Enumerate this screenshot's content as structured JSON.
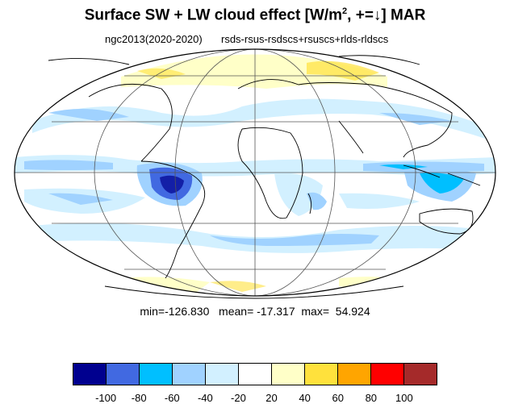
{
  "title": {
    "main": "Surface SW + LW cloud effect [W/m",
    "sup": "2",
    "rest": ", +=↓]  MAR"
  },
  "subtitle": {
    "left": "ngc2013(2020-2020)",
    "right": "rsds-rsus-rsdscs+rsuscs+rlds-rldscs"
  },
  "stats": {
    "text": "min=-126.830   mean= -17.317  max=  54.924",
    "min": -126.83,
    "mean": -17.317,
    "max": 54.924
  },
  "colorbar": {
    "colors": [
      "#00008f",
      "#4169e1",
      "#00bfff",
      "#a0d2ff",
      "#d2f0ff",
      "#ffffff",
      "#ffffc8",
      "#ffe13c",
      "#ffa500",
      "#ff0000",
      "#a52a2a"
    ],
    "labels": [
      "-100",
      "-80",
      "-60",
      "-40",
      "-20",
      "20",
      "40",
      "60",
      "80",
      "100"
    ]
  },
  "map": {
    "projection": "Mollweide",
    "parallels_deg": [
      -60,
      -30,
      0,
      30,
      60
    ],
    "meridians_deg": [
      -120,
      -60,
      0,
      60,
      120
    ]
  }
}
